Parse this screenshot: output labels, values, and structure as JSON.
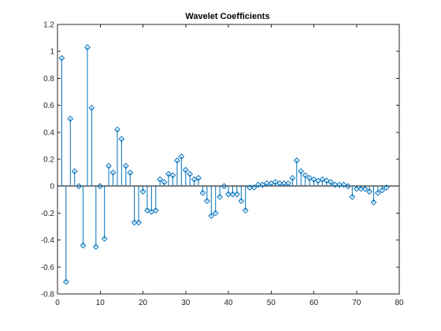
{
  "chart_data": {
    "type": "stem",
    "title": "Wavelet Coefficients",
    "xlabel": "",
    "ylabel": "",
    "xlim": [
      0,
      80
    ],
    "ylim": [
      -0.8,
      1.2
    ],
    "xticks": [
      0,
      10,
      20,
      30,
      40,
      50,
      60,
      70,
      80
    ],
    "yticks": [
      -0.8,
      -0.6,
      -0.4,
      -0.2,
      0,
      0.2,
      0.4,
      0.6,
      0.8,
      1,
      1.2
    ],
    "xtick_labels": [
      "0",
      "10",
      "20",
      "30",
      "40",
      "50",
      "60",
      "70",
      "80"
    ],
    "ytick_labels": [
      "-0.8",
      "-0.6",
      "-0.4",
      "-0.2",
      "0",
      "0.2",
      "0.4",
      "0.6",
      "0.8",
      "1",
      "1.2"
    ],
    "grid": false,
    "marker": "diamond",
    "color": "#0072BD",
    "x": [
      1,
      2,
      3,
      4,
      5,
      6,
      7,
      8,
      9,
      10,
      11,
      12,
      13,
      14,
      15,
      16,
      17,
      18,
      19,
      20,
      21,
      22,
      23,
      24,
      25,
      26,
      27,
      28,
      29,
      30,
      31,
      32,
      33,
      34,
      35,
      36,
      37,
      38,
      39,
      40,
      41,
      42,
      43,
      44,
      45,
      46,
      47,
      48,
      49,
      50,
      51,
      52,
      53,
      54,
      55,
      56,
      57,
      58,
      59,
      60,
      61,
      62,
      63,
      64,
      65,
      66,
      67,
      68,
      69,
      70,
      71,
      72,
      73,
      74,
      75,
      76,
      77
    ],
    "values": [
      0.95,
      -0.71,
      0.5,
      0.11,
      0.0,
      -0.44,
      1.03,
      0.58,
      -0.45,
      0.0,
      -0.39,
      0.15,
      0.1,
      0.42,
      0.35,
      0.15,
      0.1,
      -0.27,
      -0.27,
      -0.04,
      -0.18,
      -0.19,
      -0.18,
      0.05,
      0.03,
      0.09,
      0.08,
      0.19,
      0.22,
      0.12,
      0.09,
      0.05,
      0.06,
      -0.05,
      -0.11,
      -0.22,
      -0.2,
      -0.08,
      0.0,
      -0.06,
      -0.06,
      -0.06,
      -0.11,
      -0.18,
      -0.01,
      -0.01,
      0.01,
      0.01,
      0.02,
      0.02,
      0.03,
      0.02,
      0.02,
      0.02,
      0.06,
      0.19,
      0.11,
      0.08,
      0.06,
      0.05,
      0.04,
      0.05,
      0.04,
      0.03,
      0.01,
      0.01,
      0.01,
      0.0,
      -0.08,
      -0.02,
      -0.02,
      -0.02,
      -0.04,
      -0.12,
      -0.05,
      -0.03,
      -0.01
    ]
  }
}
